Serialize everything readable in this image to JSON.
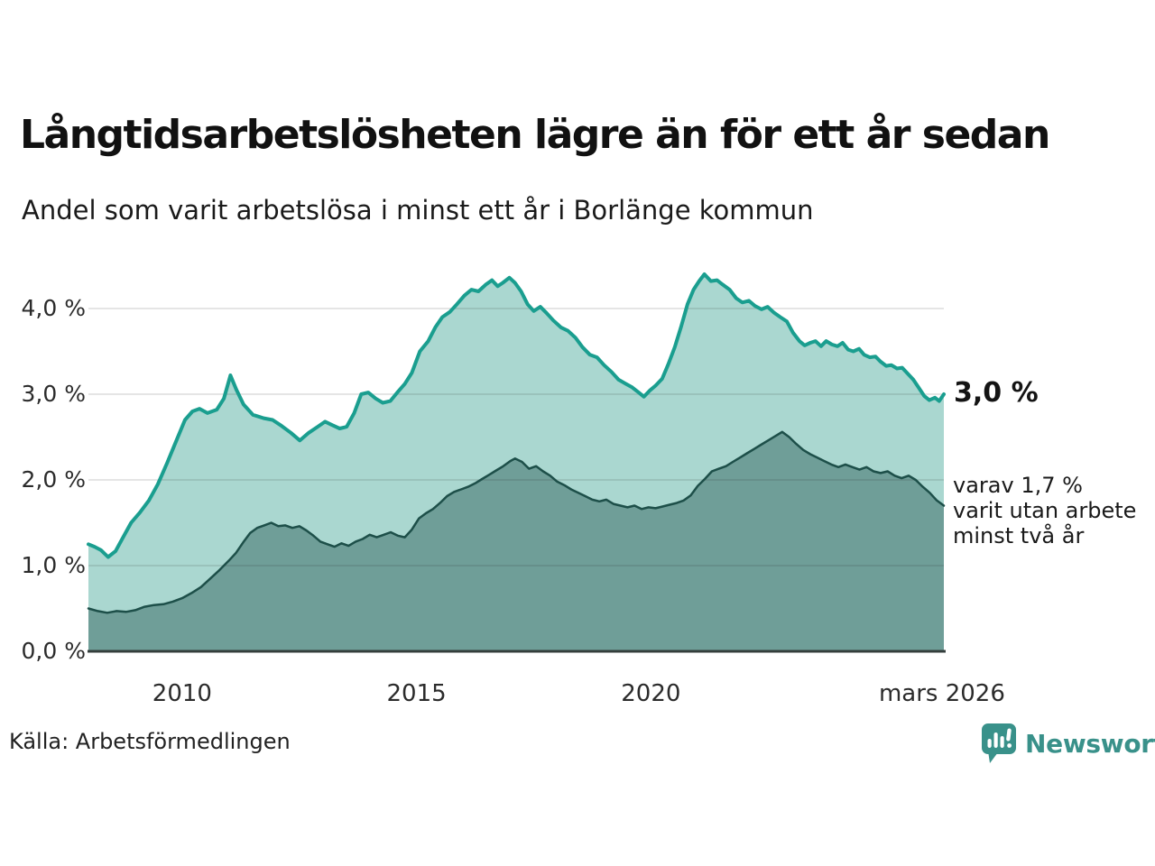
{
  "header": {
    "title": "Långtidsarbetslösheten lägre än för ett år sedan",
    "subtitle": "Andel som varit arbetslösa i minst ett år i Borlänge kommun"
  },
  "annotations": {
    "latest_total": "3,0 %",
    "two_year": "varav 1,7 %\nvarit utan arbete\nminst två år"
  },
  "footer": {
    "source": "Källa: Arbetsförmedlingen",
    "brand": "Newsworthy",
    "brand_color": "#39918a"
  },
  "chart_data": {
    "type": "area",
    "title": "Långtidsarbetslösheten lägre än för ett år sedan",
    "subtitle": "Andel som varit arbetslösa i minst ett år i Borlänge kommun",
    "unit": "%",
    "x_axis": {
      "range": [
        2008,
        2026.25
      ],
      "ticks": [
        {
          "label": "2010",
          "value": 2010
        },
        {
          "label": "2015",
          "value": 2015
        },
        {
          "label": "2020",
          "value": 2020
        },
        {
          "label": "mars 2026",
          "value": 2026.21
        }
      ]
    },
    "y_axis": {
      "range": [
        0,
        4.4
      ],
      "grid": true,
      "ticks": [
        {
          "label": "4,0 %",
          "value": 4
        },
        {
          "label": "3,0 %",
          "value": 3
        },
        {
          "label": "2,0 %",
          "value": 2
        },
        {
          "label": "1,0 %",
          "value": 1
        },
        {
          "label": "0,0 %",
          "value": 0
        }
      ]
    },
    "series": [
      {
        "name": "arbetslösa minst ett år",
        "latest_label": "3,0 %",
        "latest_value": 3.0,
        "line_color": "#1a9e8f",
        "fill_color": "#aad7d0",
        "line_width": 4,
        "points": [
          [
            2008,
            1.25
          ],
          [
            2008.13,
            1.22
          ],
          [
            2008.27,
            1.18
          ],
          [
            2008.42,
            1.1
          ],
          [
            2008.58,
            1.17
          ],
          [
            2008.73,
            1.32
          ],
          [
            2008.91,
            1.5
          ],
          [
            2009.1,
            1.62
          ],
          [
            2009.29,
            1.76
          ],
          [
            2009.48,
            1.95
          ],
          [
            2009.68,
            2.2
          ],
          [
            2009.87,
            2.45
          ],
          [
            2010.06,
            2.7
          ],
          [
            2010.22,
            2.8
          ],
          [
            2010.37,
            2.83
          ],
          [
            2010.54,
            2.78
          ],
          [
            2010.74,
            2.82
          ],
          [
            2010.89,
            2.95
          ],
          [
            2011.03,
            3.22
          ],
          [
            2011.16,
            3.05
          ],
          [
            2011.31,
            2.88
          ],
          [
            2011.51,
            2.76
          ],
          [
            2011.74,
            2.72
          ],
          [
            2011.93,
            2.7
          ],
          [
            2012.12,
            2.63
          ],
          [
            2012.32,
            2.55
          ],
          [
            2012.51,
            2.46
          ],
          [
            2012.7,
            2.55
          ],
          [
            2012.89,
            2.62
          ],
          [
            2013.05,
            2.68
          ],
          [
            2013.2,
            2.64
          ],
          [
            2013.36,
            2.6
          ],
          [
            2013.51,
            2.62
          ],
          [
            2013.67,
            2.78
          ],
          [
            2013.82,
            3
          ],
          [
            2013.97,
            3.02
          ],
          [
            2014.13,
            2.95
          ],
          [
            2014.28,
            2.9
          ],
          [
            2014.44,
            2.92
          ],
          [
            2014.59,
            3.02
          ],
          [
            2014.75,
            3.12
          ],
          [
            2014.9,
            3.25
          ],
          [
            2015.07,
            3.5
          ],
          [
            2015.25,
            3.62
          ],
          [
            2015.4,
            3.78
          ],
          [
            2015.55,
            3.9
          ],
          [
            2015.71,
            3.96
          ],
          [
            2015.86,
            4.05
          ],
          [
            2016.02,
            4.15
          ],
          [
            2016.17,
            4.22
          ],
          [
            2016.32,
            4.2
          ],
          [
            2016.48,
            4.28
          ],
          [
            2016.61,
            4.33
          ],
          [
            2016.73,
            4.26
          ],
          [
            2016.84,
            4.3
          ],
          [
            2016.98,
            4.36
          ],
          [
            2017.1,
            4.3
          ],
          [
            2017.23,
            4.2
          ],
          [
            2017.37,
            4.05
          ],
          [
            2017.5,
            3.97
          ],
          [
            2017.64,
            4.02
          ],
          [
            2017.77,
            3.95
          ],
          [
            2017.92,
            3.86
          ],
          [
            2018.08,
            3.78
          ],
          [
            2018.23,
            3.74
          ],
          [
            2018.39,
            3.66
          ],
          [
            2018.54,
            3.55
          ],
          [
            2018.7,
            3.46
          ],
          [
            2018.85,
            3.43
          ],
          [
            2019,
            3.34
          ],
          [
            2019.16,
            3.26
          ],
          [
            2019.31,
            3.17
          ],
          [
            2019.47,
            3.12
          ],
          [
            2019.6,
            3.08
          ],
          [
            2019.74,
            3.02
          ],
          [
            2019.85,
            2.97
          ],
          [
            2019.97,
            3.04
          ],
          [
            2020.1,
            3.1
          ],
          [
            2020.24,
            3.18
          ],
          [
            2020.37,
            3.35
          ],
          [
            2020.51,
            3.55
          ],
          [
            2020.64,
            3.78
          ],
          [
            2020.78,
            4.05
          ],
          [
            2020.91,
            4.22
          ],
          [
            2021.03,
            4.32
          ],
          [
            2021.14,
            4.4
          ],
          [
            2021.28,
            4.32
          ],
          [
            2021.41,
            4.33
          ],
          [
            2021.53,
            4.28
          ],
          [
            2021.68,
            4.22
          ],
          [
            2021.82,
            4.12
          ],
          [
            2021.95,
            4.07
          ],
          [
            2022.09,
            4.09
          ],
          [
            2022.22,
            4.03
          ],
          [
            2022.36,
            3.99
          ],
          [
            2022.49,
            4.02
          ],
          [
            2022.63,
            3.95
          ],
          [
            2022.76,
            3.9
          ],
          [
            2022.9,
            3.85
          ],
          [
            2023.03,
            3.72
          ],
          [
            2023.17,
            3.62
          ],
          [
            2023.28,
            3.57
          ],
          [
            2023.4,
            3.6
          ],
          [
            2023.51,
            3.62
          ],
          [
            2023.63,
            3.56
          ],
          [
            2023.74,
            3.62
          ],
          [
            2023.86,
            3.58
          ],
          [
            2023.98,
            3.56
          ],
          [
            2024.09,
            3.6
          ],
          [
            2024.21,
            3.52
          ],
          [
            2024.32,
            3.5
          ],
          [
            2024.44,
            3.53
          ],
          [
            2024.55,
            3.46
          ],
          [
            2024.67,
            3.43
          ],
          [
            2024.79,
            3.44
          ],
          [
            2024.9,
            3.38
          ],
          [
            2025.02,
            3.33
          ],
          [
            2025.13,
            3.34
          ],
          [
            2025.25,
            3.3
          ],
          [
            2025.36,
            3.31
          ],
          [
            2025.48,
            3.24
          ],
          [
            2025.6,
            3.17
          ],
          [
            2025.71,
            3.08
          ],
          [
            2025.83,
            2.98
          ],
          [
            2025.94,
            2.93
          ],
          [
            2026.06,
            2.96
          ],
          [
            2026.15,
            2.92
          ],
          [
            2026.25,
            3
          ]
        ]
      },
      {
        "name": "varav utan arbete minst två år",
        "latest_label": "varav 1,7 %",
        "latest_value": 1.7,
        "line_color": "#1d4f49",
        "fill_color": "#6f9e98",
        "line_width": 2.5,
        "points": [
          [
            2008,
            0.5
          ],
          [
            2008.2,
            0.47
          ],
          [
            2008.4,
            0.45
          ],
          [
            2008.6,
            0.47
          ],
          [
            2008.8,
            0.46
          ],
          [
            2009,
            0.48
          ],
          [
            2009.2,
            0.52
          ],
          [
            2009.4,
            0.54
          ],
          [
            2009.6,
            0.55
          ],
          [
            2009.8,
            0.58
          ],
          [
            2010,
            0.62
          ],
          [
            2010.2,
            0.68
          ],
          [
            2010.4,
            0.75
          ],
          [
            2010.6,
            0.85
          ],
          [
            2010.8,
            0.95
          ],
          [
            2011,
            1.06
          ],
          [
            2011.15,
            1.15
          ],
          [
            2011.3,
            1.27
          ],
          [
            2011.45,
            1.38
          ],
          [
            2011.6,
            1.44
          ],
          [
            2011.75,
            1.47
          ],
          [
            2011.9,
            1.5
          ],
          [
            2012.05,
            1.46
          ],
          [
            2012.2,
            1.47
          ],
          [
            2012.35,
            1.44
          ],
          [
            2012.5,
            1.46
          ],
          [
            2012.65,
            1.41
          ],
          [
            2012.8,
            1.35
          ],
          [
            2012.95,
            1.28
          ],
          [
            2013.1,
            1.25
          ],
          [
            2013.25,
            1.22
          ],
          [
            2013.4,
            1.26
          ],
          [
            2013.55,
            1.23
          ],
          [
            2013.7,
            1.28
          ],
          [
            2013.85,
            1.31
          ],
          [
            2014,
            1.36
          ],
          [
            2014.15,
            1.33
          ],
          [
            2014.3,
            1.36
          ],
          [
            2014.45,
            1.39
          ],
          [
            2014.6,
            1.35
          ],
          [
            2014.75,
            1.33
          ],
          [
            2014.9,
            1.42
          ],
          [
            2015.05,
            1.55
          ],
          [
            2015.2,
            1.61
          ],
          [
            2015.35,
            1.66
          ],
          [
            2015.5,
            1.73
          ],
          [
            2015.65,
            1.81
          ],
          [
            2015.8,
            1.86
          ],
          [
            2015.95,
            1.89
          ],
          [
            2016.1,
            1.92
          ],
          [
            2016.25,
            1.96
          ],
          [
            2016.4,
            2.01
          ],
          [
            2016.55,
            2.06
          ],
          [
            2016.7,
            2.11
          ],
          [
            2016.85,
            2.16
          ],
          [
            2017,
            2.22
          ],
          [
            2017.1,
            2.25
          ],
          [
            2017.25,
            2.21
          ],
          [
            2017.4,
            2.13
          ],
          [
            2017.55,
            2.16
          ],
          [
            2017.7,
            2.1
          ],
          [
            2017.85,
            2.05
          ],
          [
            2018,
            1.98
          ],
          [
            2018.15,
            1.94
          ],
          [
            2018.3,
            1.89
          ],
          [
            2018.45,
            1.85
          ],
          [
            2018.6,
            1.81
          ],
          [
            2018.75,
            1.77
          ],
          [
            2018.9,
            1.75
          ],
          [
            2019.05,
            1.77
          ],
          [
            2019.2,
            1.72
          ],
          [
            2019.35,
            1.7
          ],
          [
            2019.5,
            1.68
          ],
          [
            2019.65,
            1.7
          ],
          [
            2019.8,
            1.66
          ],
          [
            2019.95,
            1.68
          ],
          [
            2020.1,
            1.67
          ],
          [
            2020.25,
            1.69
          ],
          [
            2020.4,
            1.71
          ],
          [
            2020.55,
            1.73
          ],
          [
            2020.7,
            1.76
          ],
          [
            2020.85,
            1.82
          ],
          [
            2021,
            1.93
          ],
          [
            2021.15,
            2.01
          ],
          [
            2021.3,
            2.1
          ],
          [
            2021.45,
            2.13
          ],
          [
            2021.6,
            2.16
          ],
          [
            2021.75,
            2.21
          ],
          [
            2021.9,
            2.26
          ],
          [
            2022.05,
            2.31
          ],
          [
            2022.2,
            2.36
          ],
          [
            2022.35,
            2.41
          ],
          [
            2022.5,
            2.46
          ],
          [
            2022.65,
            2.51
          ],
          [
            2022.8,
            2.56
          ],
          [
            2022.95,
            2.5
          ],
          [
            2023.1,
            2.42
          ],
          [
            2023.25,
            2.35
          ],
          [
            2023.4,
            2.3
          ],
          [
            2023.55,
            2.26
          ],
          [
            2023.7,
            2.22
          ],
          [
            2023.85,
            2.18
          ],
          [
            2024,
            2.15
          ],
          [
            2024.15,
            2.18
          ],
          [
            2024.3,
            2.15
          ],
          [
            2024.45,
            2.12
          ],
          [
            2024.6,
            2.15
          ],
          [
            2024.75,
            2.1
          ],
          [
            2024.9,
            2.08
          ],
          [
            2025.05,
            2.1
          ],
          [
            2025.2,
            2.05
          ],
          [
            2025.35,
            2.02
          ],
          [
            2025.5,
            2.05
          ],
          [
            2025.65,
            2
          ],
          [
            2025.8,
            1.92
          ],
          [
            2025.95,
            1.85
          ],
          [
            2026.1,
            1.76
          ],
          [
            2026.25,
            1.7
          ]
        ]
      }
    ],
    "annotations": [
      "3,0 %",
      "varav 1,7 %\nvarit utan arbete\nminst två år"
    ],
    "source": "Källa: Arbetsförmedlingen",
    "legend_position": "none"
  }
}
